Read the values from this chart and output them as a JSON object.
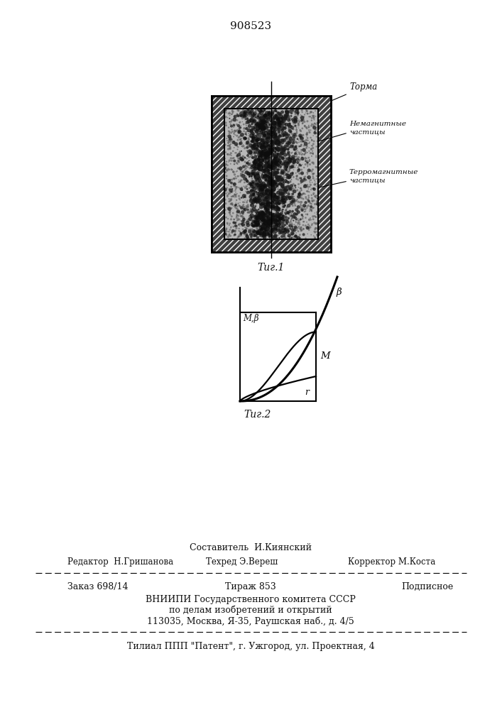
{
  "title_number": "908523",
  "fig1_label": "Τиг.1",
  "fig2_label": "Τиг.2",
  "label_forma": "Τорма",
  "label_nemag": "Немагнитные\nчастицы",
  "label_ferromag": "Τерромагнитные\nчастицы",
  "graph_ylabel": "M,β",
  "graph_curve_b": "β",
  "graph_curve_m": "M",
  "graph_curve_r": "r",
  "footer_line1": "Составитель  И.Киянский",
  "footer_line2_left": "Редактор  Н.Гришанова",
  "footer_line2_mid": "Техред Э.Вереш",
  "footer_line2_right": "Корректор М.Коста",
  "footer_order": "Заказ 698/14",
  "footer_tirazh": "Тираж 853",
  "footer_podpisnoe": "Подписное",
  "footer_vniip1": "ВНИИПИ Государственного комитета СССР",
  "footer_vniip2": "по делам изобретений и открытий",
  "footer_vniip3": "113035, Москва, Я-35, Раушская наб., д. 4/5",
  "footer_filial": "Τилиал ППП \"Патент\", г. Ужгород, ул. Проектная, 4",
  "text_color": "#111111"
}
